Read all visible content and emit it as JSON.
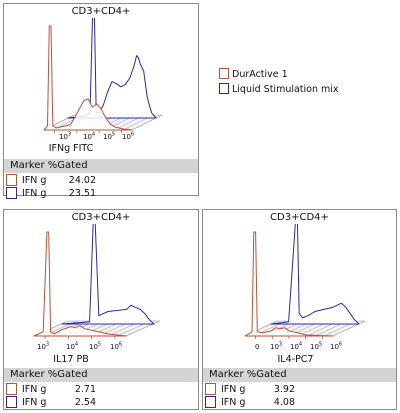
{
  "colors": {
    "durActive": "#b5543c",
    "liquid": "#2a2aa0",
    "grid": "#9a9a9a",
    "header": "#d4d4d4"
  },
  "legend": [
    {
      "label": "DurActive 1",
      "color": "#b5543c"
    },
    {
      "label": "Liquid Stimulation mix",
      "color": "#2a2aa0"
    }
  ],
  "panels": [
    {
      "title": "CD3+CD4+",
      "axis_label": "IFNg FITC",
      "ticks": [
        {
          "base": "10",
          "exp": "3"
        },
        {
          "base": "10",
          "exp": "4"
        },
        {
          "base": "10",
          "exp": "5"
        },
        {
          "base": "10",
          "exp": "6"
        }
      ],
      "table": {
        "header": "Marker %Gated",
        "rows": [
          {
            "marker": "IFN g",
            "value": "24.02",
            "color": "#b5543c"
          },
          {
            "marker": "IFN g",
            "value": "23.51",
            "color": "#2a2aa0"
          }
        ]
      }
    },
    {
      "title": "CD3+CD4+",
      "axis_label": "IL17 PB",
      "ticks": [
        {
          "base": "10",
          "exp": "3"
        },
        {
          "base": "10",
          "exp": "4"
        },
        {
          "base": "10",
          "exp": "5"
        },
        {
          "base": "10",
          "exp": "6"
        }
      ],
      "table": {
        "header": "Marker %Gated",
        "rows": [
          {
            "marker": "IFN g",
            "value": "2.71",
            "color": "#b5543c"
          },
          {
            "marker": "IFN g",
            "value": "2.54",
            "color": "#2a2aa0"
          }
        ]
      }
    },
    {
      "title": "CD3+CD4+",
      "axis_label": "IL4-PC7",
      "ticks": [
        {
          "base": "0",
          "exp": ""
        },
        {
          "base": "10",
          "exp": "3"
        },
        {
          "base": "10",
          "exp": "4"
        },
        {
          "base": "10",
          "exp": "5"
        },
        {
          "base": "10",
          "exp": "6"
        }
      ],
      "table": {
        "header": "Marker %Gated",
        "rows": [
          {
            "marker": "IFN g",
            "value": "3.92",
            "color": "#b5543c"
          },
          {
            "marker": "IFN g",
            "value": "4.08",
            "color": "#2a2aa0"
          }
        ]
      }
    }
  ],
  "chart_data": [
    {
      "type": "area",
      "title": "CD3+CD4+",
      "xlabel": "IFNg FITC",
      "ylabel": "",
      "x_scale": "log",
      "xticks": [
        "10^3",
        "10^4",
        "10^5",
        "10^6"
      ],
      "series": [
        {
          "name": "DurActive 1",
          "color": "#b5543c",
          "x": [
            0,
            0.04,
            0.06,
            0.08,
            0.1,
            0.14,
            0.3,
            0.35,
            0.4,
            0.45,
            0.5,
            0.55,
            0.6,
            0.65,
            0.7,
            0.75,
            0.8,
            0.9,
            1
          ],
          "y": [
            0,
            0.04,
            1,
            1,
            0.04,
            0.02,
            0.05,
            0.12,
            0.2,
            0.28,
            0.3,
            0.22,
            0.25,
            0.2,
            0.12,
            0.06,
            0.03,
            0.01,
            0
          ]
        },
        {
          "name": "Liquid Stimulation mix",
          "color": "#2a2aa0",
          "x": [
            0,
            0.2,
            0.25,
            0.28,
            0.3,
            0.32,
            0.35,
            0.4,
            0.45,
            0.5,
            0.55,
            0.6,
            0.65,
            0.7,
            0.75,
            0.78,
            0.8,
            0.82,
            0.86,
            0.9,
            0.95,
            1
          ],
          "y": [
            0,
            0.02,
            0.05,
            1,
            1,
            0.05,
            0.05,
            0.12,
            0.25,
            0.35,
            0.33,
            0.3,
            0.32,
            0.38,
            0.5,
            0.6,
            0.58,
            0.52,
            0.45,
            0.2,
            0.05,
            0
          ]
        }
      ]
    },
    {
      "type": "area",
      "title": "CD3+CD4+",
      "xlabel": "IL17 PB",
      "ylabel": "",
      "x_scale": "log",
      "xticks": [
        "10^3",
        "10^4",
        "10^5",
        "10^6"
      ],
      "series": [
        {
          "name": "DurActive 1",
          "color": "#b5543c",
          "x": [
            0,
            0.1,
            0.14,
            0.16,
            0.18,
            0.22,
            0.3,
            0.4,
            0.45,
            0.5,
            0.55,
            0.6,
            0.7,
            0.8,
            1
          ],
          "y": [
            0,
            0.04,
            1,
            1,
            0.04,
            0.02,
            0.06,
            0.09,
            0.08,
            0.1,
            0.07,
            0.06,
            0.04,
            0.02,
            0
          ]
        },
        {
          "name": "Liquid Stimulation mix",
          "color": "#2a2aa0",
          "x": [
            0,
            0.3,
            0.34,
            0.36,
            0.4,
            0.45,
            0.5,
            0.6,
            0.7,
            0.75,
            0.8,
            0.85,
            0.9,
            0.95,
            1
          ],
          "y": [
            0,
            0.02,
            1,
            1,
            0.08,
            0.1,
            0.12,
            0.13,
            0.14,
            0.18,
            0.16,
            0.14,
            0.1,
            0.04,
            0
          ]
        }
      ]
    },
    {
      "type": "area",
      "title": "CD3+CD4+",
      "xlabel": "IL4-PC7",
      "ylabel": "",
      "x_scale": "log",
      "xticks": [
        "0",
        "10^3",
        "10^4",
        "10^5",
        "10^6"
      ],
      "series": [
        {
          "name": "DurActive 1",
          "color": "#b5543c",
          "x": [
            0,
            0.08,
            0.1,
            0.12,
            0.14,
            0.2,
            0.3,
            0.35,
            0.4,
            0.45,
            0.5,
            0.6,
            0.7,
            1
          ],
          "y": [
            0,
            0.04,
            1,
            1,
            0.04,
            0.03,
            0.05,
            0.08,
            0.07,
            0.08,
            0.05,
            0.03,
            0.01,
            0
          ]
        },
        {
          "name": "Liquid Stimulation mix",
          "color": "#2a2aa0",
          "x": [
            0,
            0.2,
            0.28,
            0.3,
            0.32,
            0.36,
            0.42,
            0.5,
            0.6,
            0.7,
            0.75,
            0.8,
            0.85,
            0.9,
            0.95,
            1
          ],
          "y": [
            0,
            0.02,
            1,
            1,
            0.1,
            0.06,
            0.08,
            0.12,
            0.14,
            0.16,
            0.18,
            0.2,
            0.16,
            0.1,
            0.04,
            0
          ]
        }
      ]
    }
  ]
}
